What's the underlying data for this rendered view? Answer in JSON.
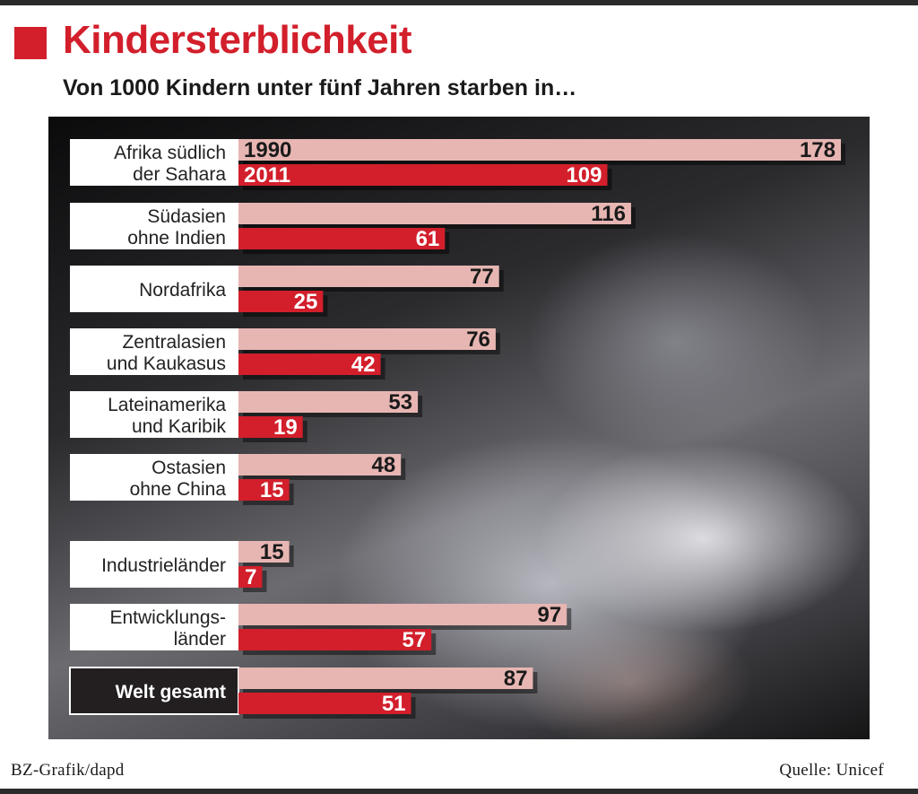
{
  "header": {
    "title": "Kindersterblichkeit",
    "subtitle": "Von 1000 Kindern unter fünf Jahren starben in…"
  },
  "footer": {
    "credit": "BZ-Grafik/dapd",
    "source": "Quelle: Unicef"
  },
  "colors": {
    "accent_red": "#d21f2b",
    "bar_1990": "#e7b6b3",
    "bar_2011": "#d21f2b",
    "label_box": "#ffffff",
    "highlight_box": "#231f20"
  },
  "chart_data": {
    "type": "bar",
    "orientation": "horizontal",
    "title": "Kindersterblichkeit",
    "subtitle": "Von 1000 Kindern unter fünf Jahren starben in…",
    "series": [
      {
        "name": "1990",
        "values": [
          178,
          116,
          77,
          76,
          53,
          48,
          15,
          97,
          87
        ]
      },
      {
        "name": "2011",
        "values": [
          109,
          61,
          25,
          42,
          19,
          15,
          7,
          57,
          51
        ]
      }
    ],
    "categories": [
      [
        "Afrika südlich",
        "der Sahara"
      ],
      [
        "Südasien",
        "ohne Indien"
      ],
      [
        "Nordafrika"
      ],
      [
        "Zentralasien",
        "und Kaukasus"
      ],
      [
        "Lateinamerika",
        "und Karibik"
      ],
      [
        "Ostasien",
        "ohne China"
      ],
      [
        "Industrieländer"
      ],
      [
        "Entwicklungs-",
        "länder"
      ],
      [
        "Welt gesamt"
      ]
    ],
    "highlighted_category": "Welt gesamt",
    "xlim": [
      0,
      178
    ],
    "grid": false,
    "legend": "inline in first bars"
  }
}
